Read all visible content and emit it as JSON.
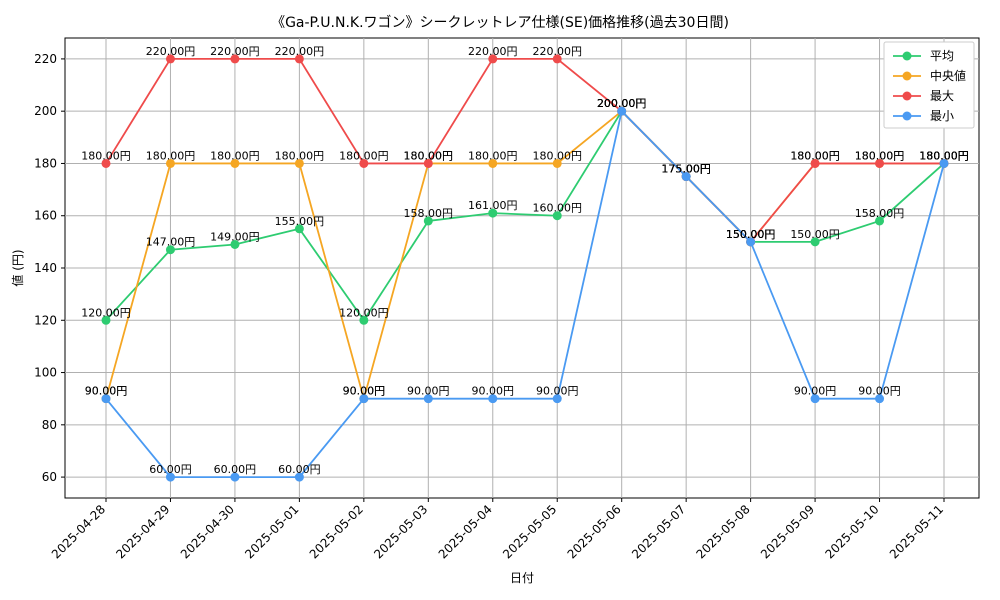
{
  "chart_data": {
    "type": "line",
    "title": "《Ga-P.U.N.K.ワゴン》シークレットレア仕様(SE)価格推移(過去30日間)",
    "xlabel": "日付",
    "ylabel": "値 (円)",
    "categories": [
      "2025-04-28",
      "2025-04-29",
      "2025-04-30",
      "2025-05-01",
      "2025-05-02",
      "2025-05-03",
      "2025-05-04",
      "2025-05-05",
      "2025-05-06",
      "2025-05-07",
      "2025-05-08",
      "2025-05-09",
      "2025-05-10",
      "2025-05-11"
    ],
    "ylim": [
      52,
      228
    ],
    "yticks": [
      60,
      80,
      100,
      120,
      140,
      160,
      180,
      200,
      220
    ],
    "grid": true,
    "legend_position": "top-right",
    "series": [
      {
        "name": "平均",
        "color": "#2ecc71",
        "values": [
          120,
          147,
          149,
          155,
          120,
          158,
          161,
          160,
          200,
          175,
          150,
          150,
          158,
          180
        ],
        "labels": [
          "120.00円",
          "147.00円",
          "149.00円",
          "155.00円",
          "120.00円",
          "158.00円",
          "161.00円",
          "160.00円",
          "200.00円",
          "175.00円",
          "150.00円",
          "150.00円",
          "158.00円",
          "180.00円"
        ]
      },
      {
        "name": "中央値",
        "color": "#f5a623",
        "values": [
          90,
          180,
          180,
          180,
          90,
          180,
          180,
          180,
          200,
          175,
          150,
          180,
          180,
          180
        ],
        "labels": [
          "90.00円",
          "180.00円",
          "180.00円",
          "180.00円",
          "90.00円",
          "180.00円",
          "180.00円",
          "180.00円",
          "200.00円",
          "175.00円",
          "150.00円",
          "180.00円",
          "180.00円",
          "180.00円"
        ]
      },
      {
        "name": "最大",
        "color": "#ef4b4b",
        "values": [
          180,
          220,
          220,
          220,
          180,
          180,
          220,
          220,
          200,
          175,
          150,
          180,
          180,
          180
        ],
        "labels": [
          "180.00円",
          "220.00円",
          "220.00円",
          "220.00円",
          "180.00円",
          "180.00円",
          "220.00円",
          "220.00円",
          "200.00円",
          "175.00円",
          "150.00円",
          "180.00円",
          "180.00円",
          "180.00円"
        ]
      },
      {
        "name": "最小",
        "color": "#4a9af2",
        "values": [
          90,
          60,
          60,
          60,
          90,
          90,
          90,
          90,
          200,
          175,
          150,
          90,
          90,
          180
        ],
        "labels": [
          "90.00円",
          "60.00円",
          "60.00円",
          "60.00円",
          "90.00円",
          "90.00円",
          "90.00円",
          "90.00円",
          "200.00円",
          "175.00円",
          "150.00円",
          "90.00円",
          "90.00円",
          "180.00円"
        ]
      }
    ]
  }
}
